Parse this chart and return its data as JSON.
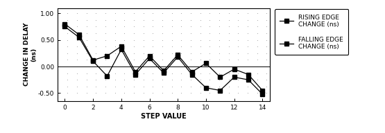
{
  "rising_x": [
    0,
    1,
    2,
    3,
    4,
    5,
    6,
    7,
    8,
    9,
    10,
    11,
    12,
    13,
    14
  ],
  "rising_y": [
    0.8,
    0.6,
    0.12,
    0.2,
    0.38,
    -0.1,
    0.2,
    -0.08,
    0.22,
    -0.1,
    0.06,
    -0.2,
    -0.05,
    -0.15,
    -0.45
  ],
  "falling_x": [
    0,
    1,
    2,
    3,
    4,
    5,
    6,
    7,
    8,
    9,
    10,
    11,
    12,
    13,
    14
  ],
  "falling_y": [
    0.75,
    0.55,
    0.1,
    -0.18,
    0.32,
    -0.15,
    0.15,
    -0.12,
    0.18,
    -0.15,
    -0.4,
    -0.45,
    -0.2,
    -0.25,
    -0.52
  ],
  "xlabel": "STEP VALUE",
  "ylabel": "CHANGE IN DELAY\n(ns)",
  "ylim": [
    -0.65,
    1.1
  ],
  "xlim": [
    -0.5,
    14.5
  ],
  "yticks": [
    -0.5,
    0.0,
    0.5,
    1.0
  ],
  "xticks": [
    0,
    2,
    4,
    6,
    8,
    10,
    12,
    14
  ],
  "xtick_labels": [
    "0",
    "2",
    "4",
    "6",
    "8",
    "10",
    "12",
    "14"
  ],
  "legend_labels": [
    "RISING EDGE\nCHANGE (ns)",
    "FALLING EDGE\nCHANGE (ns)"
  ],
  "line_color": "#000000",
  "bg_color": "#ffffff",
  "dot_color": "#999999",
  "figsize": [
    5.55,
    1.92
  ],
  "dpi": 100
}
